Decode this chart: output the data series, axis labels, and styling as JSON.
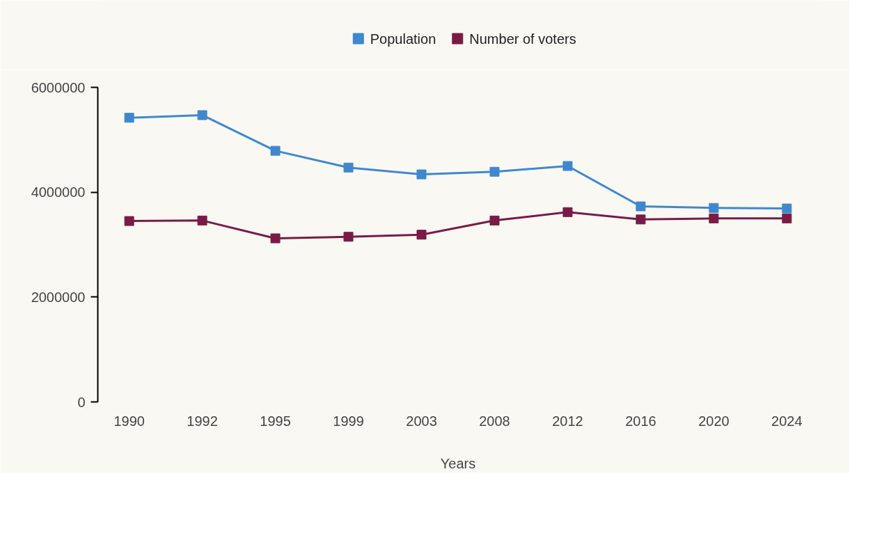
{
  "chart_data": {
    "type": "line",
    "xlabel": "Years",
    "categories": [
      "1990",
      "1992",
      "1995",
      "1999",
      "2003",
      "2008",
      "2012",
      "2016",
      "2020",
      "2024"
    ],
    "series": [
      {
        "name": "Population",
        "color": "#3f88cf",
        "values": [
          5420000,
          5470000,
          4790000,
          4470000,
          4340000,
          4390000,
          4500000,
          3730000,
          3700000,
          3690000
        ]
      },
      {
        "name": "Number of voters",
        "color": "#7a1a47",
        "values": [
          3450000,
          3460000,
          3120000,
          3150000,
          3190000,
          3460000,
          3620000,
          3480000,
          3500000,
          3500000
        ]
      }
    ],
    "ylim": [
      0,
      6000000
    ],
    "yticks": [
      0,
      2000000,
      4000000,
      6000000
    ],
    "grid": false,
    "legend": "top",
    "marker": "square",
    "line_style": "solid"
  }
}
